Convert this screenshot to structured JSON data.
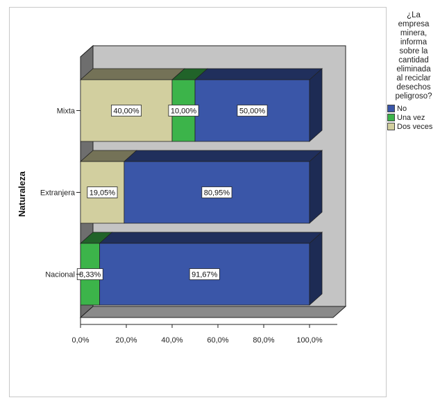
{
  "chart_data": {
    "type": "bar",
    "orientation": "horizontal",
    "stacked": true,
    "three_d": true,
    "ylabel": "Naturaleza",
    "xlabel": "",
    "xlim": [
      0,
      100
    ],
    "x_ticks": [
      "0,0%",
      "20,0%",
      "40,0%",
      "60,0%",
      "80,0%",
      "100,0%"
    ],
    "grid": false,
    "legend_position": "right",
    "categories": [
      "Mixta",
      "Extranjera",
      "Nacional"
    ],
    "series": [
      {
        "name": "Dos veces",
        "color": "#d2cf9f",
        "values": [
          40.0,
          19.05,
          0
        ],
        "labels": [
          "40,00%",
          "19,05%",
          ""
        ]
      },
      {
        "name": "Una vez",
        "color": "#3cb44a",
        "values": [
          10.0,
          0,
          8.33
        ],
        "labels": [
          "10,00%",
          "",
          "8,33%"
        ]
      },
      {
        "name": "No",
        "color": "#3a56a8",
        "values": [
          50.0,
          80.95,
          91.67
        ],
        "labels": [
          "50,00%",
          "80,95%",
          "91,67%"
        ]
      }
    ],
    "legend": {
      "title": "¿La empresa minera, informa sobre la cantidad eliminada al reciclar desechos peligroso?",
      "title_lines": [
        "¿La",
        "empresa",
        "minera,",
        "informa",
        "sobre la",
        "cantidad",
        "eliminada",
        "al reciclar",
        "desechos",
        "peligroso?"
      ],
      "items": [
        {
          "label": "No",
          "color": "#3a56a8"
        },
        {
          "label": "Una vez",
          "color": "#3cb44a"
        },
        {
          "label": "Dos veces",
          "color": "#d2cf9f"
        }
      ]
    }
  }
}
